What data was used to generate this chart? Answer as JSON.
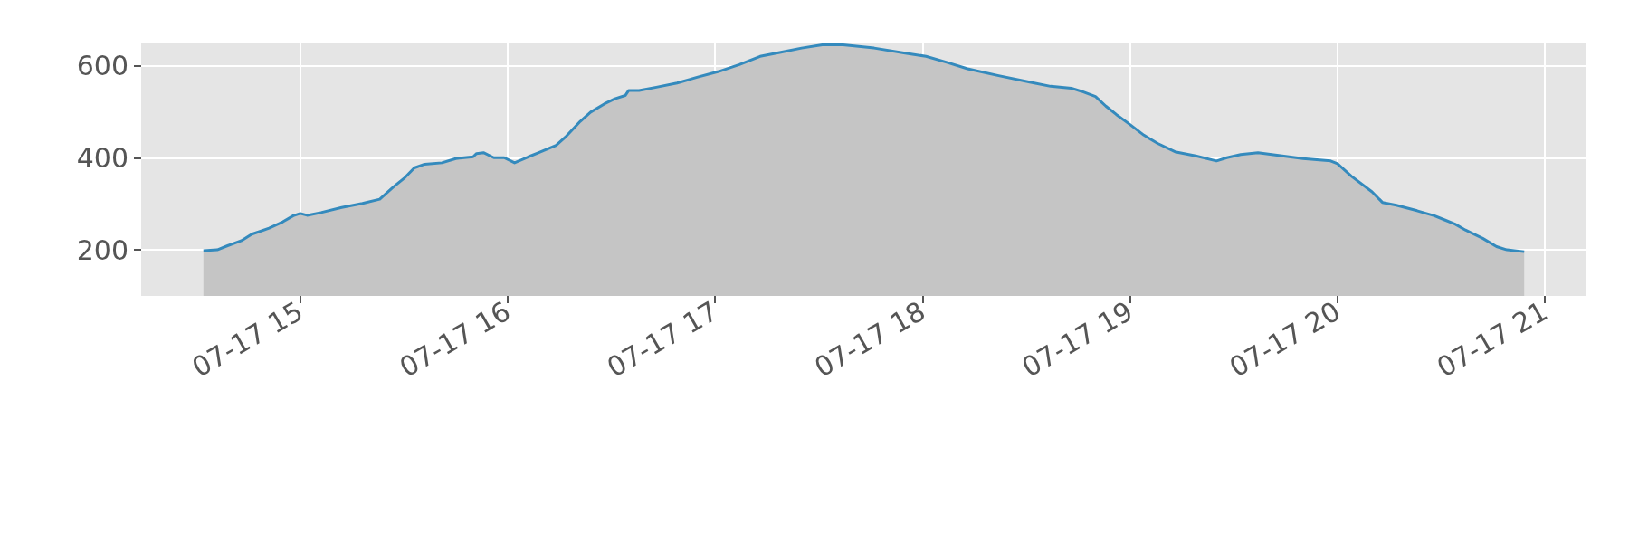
{
  "chart_data": {
    "type": "area",
    "x": [
      "--07-17T14:32",
      "--07-17T14:36",
      "--07-17T14:39",
      "--07-17T14:43",
      "--07-17T14:46",
      "--07-17T14:51",
      "--07-17T14:55",
      "--07-17T14:58",
      "--07-17T15:00",
      "--07-17T15:02",
      "--07-17T15:06",
      "--07-17T15:12",
      "--07-17T15:18",
      "--07-17T15:23",
      "--07-17T15:27",
      "--07-17T15:30",
      "--07-17T15:33",
      "--07-17T15:36",
      "--07-17T15:41",
      "--07-17T15:45",
      "--07-17T15:50",
      "--07-17T15:51",
      "--07-17T15:53",
      "--07-17T15:56",
      "--07-17T15:59",
      "--07-17T16:02",
      "--07-17T16:06",
      "--07-17T16:09",
      "--07-17T16:14",
      "--07-17T16:17",
      "--07-17T16:21",
      "--07-17T16:24",
      "--07-17T16:28",
      "--07-17T16:31",
      "--07-17T16:34",
      "--07-17T16:35",
      "--07-17T16:38",
      "--07-17T16:43",
      "--07-17T16:49",
      "--07-17T16:55",
      "--07-17T17:01",
      "--07-17T17:07",
      "--07-17T17:13",
      "--07-17T17:19",
      "--07-17T17:25",
      "--07-17T17:31",
      "--07-17T17:37",
      "--07-17T17:46",
      "--07-17T17:55",
      "--07-17T18:01",
      "--07-17T18:07",
      "--07-17T18:13",
      "--07-17T18:22",
      "--07-17T18:31",
      "--07-17T18:37",
      "--07-17T18:43",
      "--07-17T18:46",
      "--07-17T18:50",
      "--07-17T18:53",
      "--07-17T18:56",
      "--07-17T19:00",
      "--07-17T19:04",
      "--07-17T19:08",
      "--07-17T19:13",
      "--07-17T19:19",
      "--07-17T19:25",
      "--07-17T19:28",
      "--07-17T19:32",
      "--07-17T19:37",
      "--07-17T19:44",
      "--07-17T19:50",
      "--07-17T19:58",
      "--07-17T20:00",
      "--07-17T20:04",
      "--07-17T20:10",
      "--07-17T20:13",
      "--07-17T20:17",
      "--07-17T20:23",
      "--07-17T20:28",
      "--07-17T20:31",
      "--07-17T20:34",
      "--07-17T20:37",
      "--07-17T20:42",
      "--07-17T20:46",
      "--07-17T20:49",
      "--07-17T20:54"
    ],
    "series": [
      {
        "color": "#348abd",
        "values": [
          198,
          200,
          209,
          220,
          234,
          247,
          261,
          274,
          279,
          275,
          281,
          292,
          301,
          310,
          337,
          355,
          378,
          386,
          389,
          398,
          402,
          409,
          411,
          400,
          400,
          389,
          402,
          411,
          427,
          447,
          479,
          499,
          517,
          528,
          535,
          546,
          546,
          553,
          562,
          575,
          587,
          602,
          620,
          629,
          638,
          645,
          645,
          638,
          627,
          620,
          607,
          593,
          578,
          564,
          555,
          551,
          544,
          533,
          512,
          494,
          472,
          449,
          431,
          413,
          404,
          393,
          400,
          407,
          411,
          404,
          398,
          393,
          387,
          360,
          326,
          303,
          297,
          285,
          274,
          265,
          256,
          243,
          225,
          207,
          200,
          196
        ]
      }
    ],
    "xlim": [
      "--07-17T14:14",
      "--07-17T21:12"
    ],
    "xticks": [
      {
        "value": "--07-17T15:00",
        "label": "07-17 15"
      },
      {
        "value": "--07-17T16:00",
        "label": "07-17 16"
      },
      {
        "value": "--07-17T17:00",
        "label": "07-17 17"
      },
      {
        "value": "--07-17T18:00",
        "label": "07-17 18"
      },
      {
        "value": "--07-17T19:00",
        "label": "07-17 19"
      },
      {
        "value": "--07-17T20:00",
        "label": "07-17 20"
      },
      {
        "value": "--07-17T21:00",
        "label": "07-17 21"
      }
    ],
    "ylim": [
      100,
      650
    ],
    "yticks": [
      200,
      400,
      600
    ],
    "grid": true,
    "line_style": "solid",
    "marker": "none"
  }
}
